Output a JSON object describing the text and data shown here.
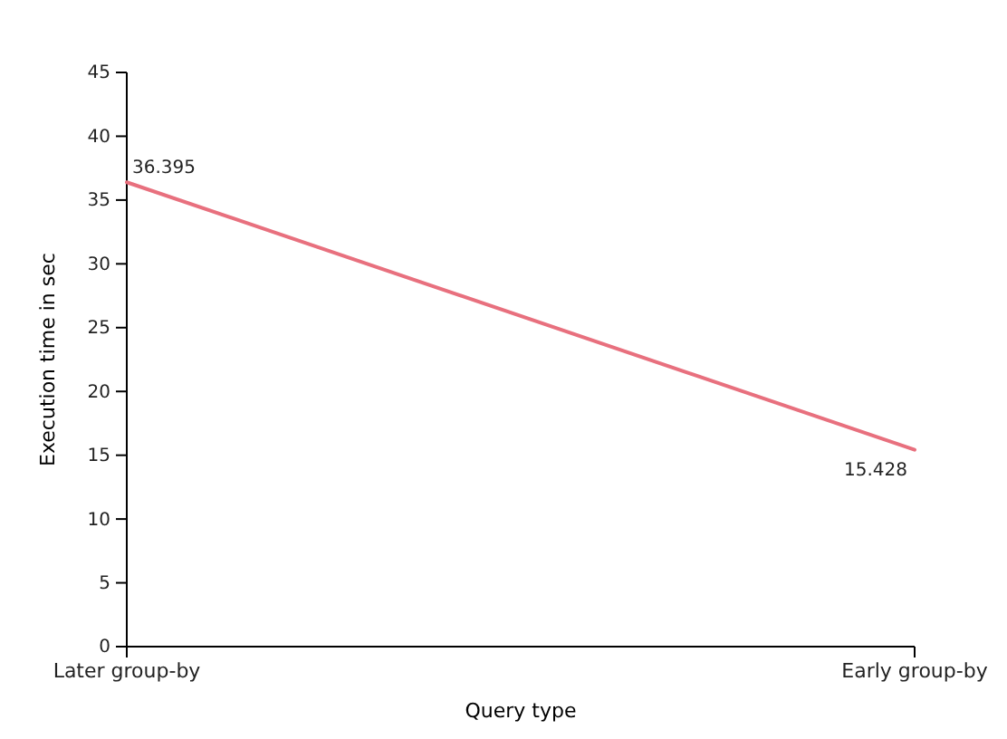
{
  "chart_data": {
    "type": "line",
    "xlabel": "Query type",
    "ylabel": "Execution time in sec",
    "categories": [
      "Later group-by",
      "Early group-by"
    ],
    "series": [
      {
        "color": "#e8707e",
        "values": [
          36.395,
          15.428
        ]
      }
    ],
    "ylim": [
      0,
      45
    ],
    "yticks": [
      0,
      5,
      10,
      15,
      20,
      25,
      30,
      35,
      40,
      45
    ],
    "grid": false,
    "marker": "none",
    "line_style": "solid",
    "data_labels": true
  }
}
